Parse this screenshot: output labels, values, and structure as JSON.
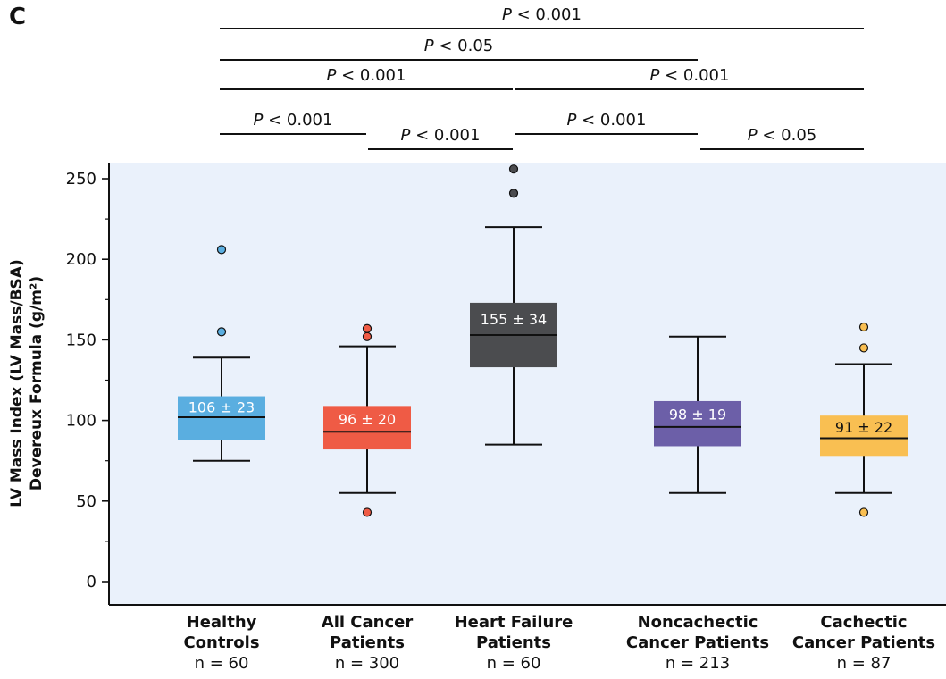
{
  "panel_letter": "C",
  "chart_data": {
    "type": "box",
    "ylabel_lines": [
      "LV Mass Index (LV Mass/BSA)",
      "Devereux Formula (g/m²)"
    ],
    "ylim": [
      0,
      260
    ],
    "yticks": [
      0,
      50,
      100,
      150,
      200,
      250
    ],
    "background_color": "#eaf1fb",
    "groups": [
      {
        "name": "Healthy\nControls",
        "n_label": "n = 60",
        "label": "106 ± 23",
        "color": "#5aaee0",
        "label_color": "#ffffff",
        "whisker_low": 75,
        "q1": 88,
        "median": 102,
        "q3": 115,
        "whisker_high": 139,
        "outliers": [
          155,
          206
        ]
      },
      {
        "name": "All Cancer\nPatients",
        "n_label": "n = 300",
        "label": "96 ± 20",
        "color": "#ef5b45",
        "label_color": "#ffffff",
        "whisker_low": 55,
        "q1": 82,
        "median": 93,
        "q3": 109,
        "whisker_high": 146,
        "outliers": [
          43,
          152,
          157
        ]
      },
      {
        "name": "Heart Failure\nPatients",
        "n_label": "n = 60",
        "label": "155 ± 34",
        "color": "#4b4c4f",
        "label_color": "#ffffff",
        "whisker_low": 85,
        "q1": 133,
        "median": 153,
        "q3": 173,
        "whisker_high": 220,
        "outliers": [
          241,
          256
        ]
      },
      {
        "name": "Noncachectic\nCancer Patients",
        "n_label": "n = 213",
        "label": "98 ± 19",
        "color": "#6c5fa8",
        "label_color": "#ffffff",
        "whisker_low": 55,
        "q1": 84,
        "median": 96,
        "q3": 112,
        "whisker_high": 152,
        "outliers": []
      },
      {
        "name": "Cachectic\nCancer Patients",
        "n_label": "n = 87",
        "label": "91 ± 22",
        "color": "#f9bf52",
        "label_color": "#111111",
        "whisker_low": 55,
        "q1": 78,
        "median": 89,
        "q3": 103,
        "whisker_high": 135,
        "outliers": [
          43,
          145,
          158
        ]
      }
    ],
    "significance": [
      {
        "from": 0,
        "to": 4,
        "label_prefix": "P",
        "label": "< 0.001",
        "level": 5
      },
      {
        "from": 0,
        "to": 3,
        "label_prefix": "P",
        "label": "< 0.05",
        "level": 4
      },
      {
        "from": 0,
        "to": 2,
        "label_prefix": "P",
        "label": "< 0.001",
        "level": 3
      },
      {
        "from": 2,
        "to": 4,
        "label_prefix": "P",
        "label": "< 0.001",
        "level": 3
      },
      {
        "from": 0,
        "to": 1,
        "label_prefix": "P",
        "label": "< 0.001",
        "level": 2
      },
      {
        "from": 2,
        "to": 3,
        "label_prefix": "P",
        "label": "< 0.001",
        "level": 2
      },
      {
        "from": 1,
        "to": 2,
        "label_prefix": "P",
        "label": "< 0.001",
        "level": 1
      },
      {
        "from": 3,
        "to": 4,
        "label_prefix": "P",
        "label": "< 0.05",
        "level": 1
      }
    ]
  }
}
